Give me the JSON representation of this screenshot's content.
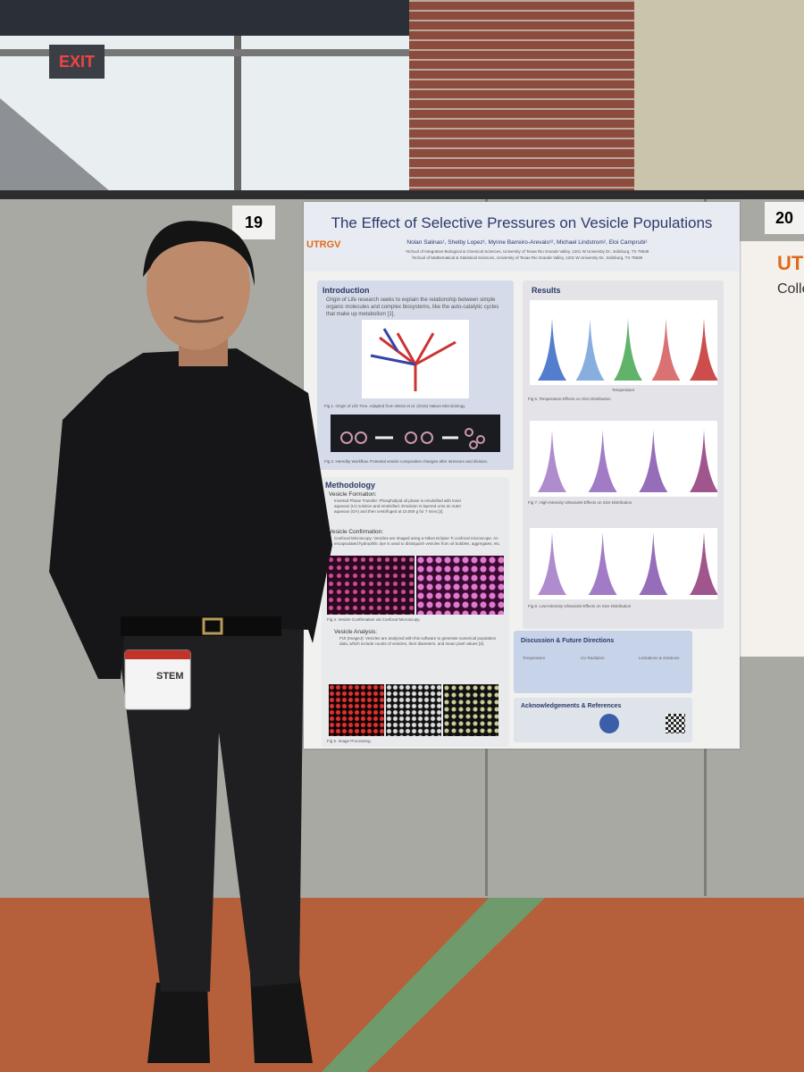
{
  "signs": {
    "exit": "EXIT",
    "booth_left": "19",
    "booth_right": "20"
  },
  "poster": {
    "title": "The Effect of Selective Pressures on Vesicle Populations",
    "logo": "UTRGV",
    "authors": "Nolan Salinas¹, Shelby Lopez¹, Myrine Barreiro-Arevalo¹², Michael Lindstrom², Eloi Camprubi¹",
    "affiliations": [
      "¹School of Integrative Biological & Chemical Sciences, University of Texas Rio Grande Valley, 1201 W University Dr., Edinburg, TX 78539",
      "²School of Mathematical & Statistical Sciences, University of Texas Rio Grande Valley, 1201 W University Dr., Edinburg, TX 78539"
    ],
    "introduction": {
      "heading": "Introduction",
      "text": "Origin of Life research seeks to explain the relationship between simple organic molecules and complex biosystems, like the auto-catalytic cycles that make up metabolism [1].",
      "fig1": "Fig 1. Origin of Life Tree. Adapted from Weiss et al. (2016) Nature Microbiology",
      "fig2": "Fig 2. Heredity Workflow. Potential vesicle composition changes after stressors and division."
    },
    "methodology": {
      "heading": "Methodology",
      "formation": "Vesicle Formation:",
      "formation_text": "Inverted Phase Transfer: Phospholipid oil phase is emulsified with inner aqueous (IA) solution and emulsified. Emulsion is layered onto an outer aqueous (OA) and then centrifuged at 10,000 g for 7 mins [2].",
      "confirmation": "Vesicle Confirmation:",
      "confirmation_text": "Confocal Microscopy: Vesicles are imaged using a Nikon Eclipse Ti confocal microscope. An encapsulated hydrophilic dye is used to distinguish vesicles from oil bubbles, aggregates, etc.",
      "fig4": "Fig 4. Vesicle Confirmation via Confocal Microscopy.",
      "analysis": "Vesicle Analysis:",
      "analysis_text": "FIJI (ImageJ): Vesicles are analyzed with this software to generate numerical population data, which include counts of vesicles, their diameters, and mean pixel values [3].",
      "fig5": "Fig 5. Image Processing."
    },
    "results": {
      "heading": "Results",
      "axis": "Temperature",
      "fig6": "Fig 6. Temperature Effects on Size Distribution",
      "fig7": "Fig 7. High-Intensity Ultraviolet Effects on Size Distribution",
      "fig8": "Fig 8. Low-Intensity Ultraviolet Effects on Size Distribution"
    },
    "discussion": {
      "heading": "Discussion & Future Directions",
      "columns": [
        "Temperature",
        "UV Radiation",
        "Limitations & Solutions"
      ]
    },
    "acknowledgements": {
      "heading": "Acknowledgements & References"
    }
  },
  "right_poster": {
    "logo": "UT",
    "heading": "Colleg"
  },
  "badge": {
    "label": "STEM"
  }
}
